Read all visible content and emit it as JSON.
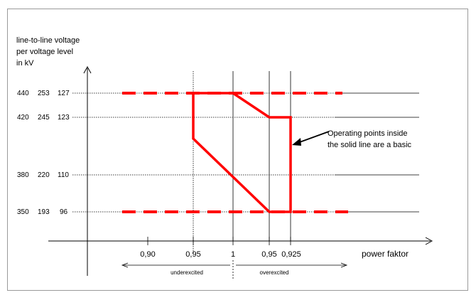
{
  "chart_data": {
    "type": "diagram",
    "y_axis_label_lines": [
      "line-to-line voltage",
      "per voltage level",
      "in kV"
    ],
    "voltage_levels": [
      {
        "values": [
          "440",
          "253",
          "127"
        ]
      },
      {
        "values": [
          "420",
          "245",
          "123"
        ]
      },
      {
        "values": [
          "380",
          "220",
          "110"
        ]
      },
      {
        "values": [
          "350",
          "193",
          "96"
        ]
      }
    ],
    "x_tick_labels": [
      "0,90",
      "0,95",
      "1",
      "0,95",
      "0,925"
    ],
    "x_axis_label": "power faktor",
    "regions": {
      "left": "underexcited",
      "right": "overexcited"
    },
    "annotation_lines": [
      "Operating points inside",
      "the solid line are a basic"
    ],
    "colors": {
      "boundary": "#ff0000",
      "axis": "#000000",
      "gridline": "#000000"
    }
  }
}
